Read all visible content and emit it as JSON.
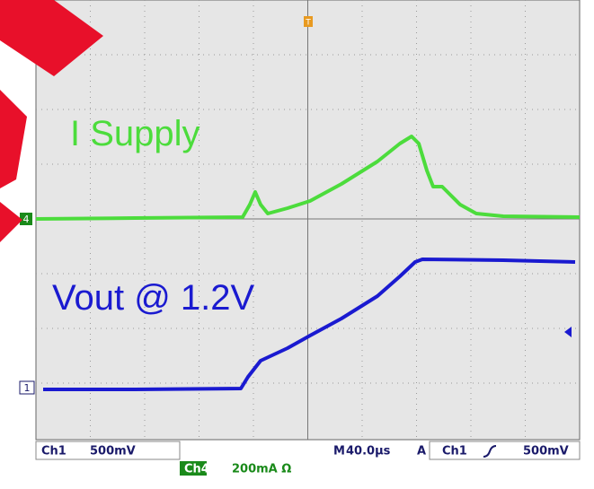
{
  "traces": {
    "supply_label": "I Supply",
    "vout_label": "Vout @ 1.2V",
    "ch4_marker": "4",
    "ch1_marker": "1",
    "trigger_marker": "T"
  },
  "status": {
    "ch1": "Ch1",
    "ch1_scale": "500mV",
    "timebase_prefix": "M",
    "timebase": "40.0µs",
    "trigger_mode": "A",
    "trigger_source": "Ch1",
    "trigger_level": "500mV",
    "ch4": "Ch4",
    "ch4_scale": "200mA Ω"
  }
}
